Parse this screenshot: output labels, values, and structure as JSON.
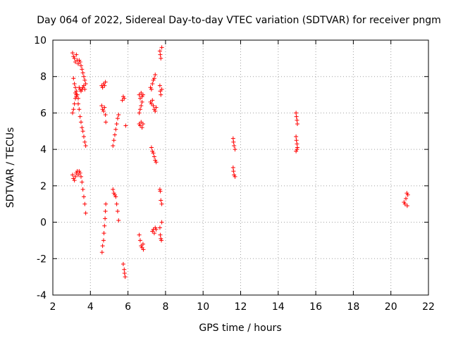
{
  "chart_data": {
    "type": "scatter",
    "title": "Day 064 of 2022, Sidereal Day-to-day VTEC variation (SDTVAR) for receiver pngm",
    "xlabel": "GPS time / hours",
    "ylabel": "SDTVAR / TECUs",
    "xlim": [
      2,
      22
    ],
    "ylim": [
      -4,
      10
    ],
    "xticks": [
      2,
      4,
      6,
      8,
      10,
      12,
      14,
      16,
      18,
      20,
      22
    ],
    "yticks": [
      -4,
      -2,
      0,
      2,
      4,
      6,
      8,
      10
    ],
    "xtick_labels": [
      "2",
      "4",
      "6",
      "8",
      "10",
      "12",
      "14",
      "16",
      "18",
      "20",
      "22"
    ],
    "ytick_labels": [
      "-4",
      "-2",
      "0",
      "2",
      "4",
      "6",
      "8",
      "10"
    ],
    "grid": true,
    "marker": "+",
    "color": "#ff0000",
    "series": [
      {
        "name": "SDTVAR",
        "points": [
          [
            3.05,
            9.3
          ],
          [
            3.1,
            9.1
          ],
          [
            3.15,
            9.0
          ],
          [
            3.2,
            8.8
          ],
          [
            3.25,
            9.2
          ],
          [
            3.3,
            8.9
          ],
          [
            3.35,
            8.7
          ],
          [
            3.4,
            8.9
          ],
          [
            3.45,
            8.8
          ],
          [
            3.5,
            8.6
          ],
          [
            3.55,
            8.4
          ],
          [
            3.6,
            8.2
          ],
          [
            3.65,
            8.0
          ],
          [
            3.7,
            7.8
          ],
          [
            3.75,
            7.6
          ],
          [
            3.1,
            7.9
          ],
          [
            3.15,
            7.6
          ],
          [
            3.2,
            7.4
          ],
          [
            3.25,
            7.2
          ],
          [
            3.3,
            7.0
          ],
          [
            3.35,
            6.8
          ],
          [
            3.4,
            7.4
          ],
          [
            3.45,
            7.3
          ],
          [
            3.5,
            7.2
          ],
          [
            3.55,
            7.3
          ],
          [
            3.6,
            7.4
          ],
          [
            3.65,
            7.5
          ],
          [
            3.7,
            7.3
          ],
          [
            3.2,
            7.1
          ],
          [
            3.25,
            6.9
          ],
          [
            3.05,
            6.0
          ],
          [
            3.1,
            6.2
          ],
          [
            3.15,
            6.5
          ],
          [
            3.2,
            6.8
          ],
          [
            3.25,
            7.0
          ],
          [
            3.35,
            6.5
          ],
          [
            3.4,
            6.2
          ],
          [
            3.45,
            5.8
          ],
          [
            3.5,
            5.5
          ],
          [
            3.55,
            5.2
          ],
          [
            3.6,
            5.0
          ],
          [
            3.65,
            4.7
          ],
          [
            3.7,
            4.4
          ],
          [
            3.75,
            4.2
          ],
          [
            3.05,
            2.6
          ],
          [
            3.1,
            2.4
          ],
          [
            3.15,
            2.3
          ],
          [
            3.2,
            2.5
          ],
          [
            3.25,
            2.7
          ],
          [
            3.3,
            2.8
          ],
          [
            3.35,
            2.6
          ],
          [
            3.4,
            2.8
          ],
          [
            3.45,
            2.7
          ],
          [
            3.5,
            2.5
          ],
          [
            3.55,
            2.2
          ],
          [
            3.6,
            1.8
          ],
          [
            3.65,
            1.4
          ],
          [
            3.7,
            1.0
          ],
          [
            3.75,
            0.5
          ],
          [
            4.62,
            -1.65
          ],
          [
            4.65,
            -1.3
          ],
          [
            4.7,
            -1.0
          ],
          [
            4.72,
            -0.6
          ],
          [
            4.75,
            -0.2
          ],
          [
            4.78,
            0.2
          ],
          [
            4.8,
            0.6
          ],
          [
            4.82,
            1.0
          ],
          [
            4.6,
            7.5
          ],
          [
            4.65,
            7.4
          ],
          [
            4.7,
            7.6
          ],
          [
            4.75,
            7.5
          ],
          [
            4.8,
            7.7
          ],
          [
            4.6,
            6.4
          ],
          [
            4.65,
            6.2
          ],
          [
            4.7,
            6.1
          ],
          [
            4.75,
            6.3
          ],
          [
            4.8,
            5.9
          ],
          [
            4.82,
            5.5
          ],
          [
            5.2,
            4.2
          ],
          [
            5.25,
            4.5
          ],
          [
            5.3,
            4.8
          ],
          [
            5.35,
            5.1
          ],
          [
            5.4,
            5.4
          ],
          [
            5.45,
            5.7
          ],
          [
            5.5,
            5.9
          ],
          [
            5.2,
            1.8
          ],
          [
            5.25,
            1.6
          ],
          [
            5.3,
            1.5
          ],
          [
            5.35,
            1.4
          ],
          [
            5.4,
            1.0
          ],
          [
            5.45,
            0.6
          ],
          [
            5.5,
            0.1
          ],
          [
            5.75,
            -2.3
          ],
          [
            5.8,
            -2.6
          ],
          [
            5.82,
            -2.8
          ],
          [
            5.85,
            -3.0
          ],
          [
            5.7,
            6.7
          ],
          [
            5.75,
            6.9
          ],
          [
            5.8,
            6.8
          ],
          [
            5.88,
            5.3
          ],
          [
            6.6,
            7.0
          ],
          [
            6.65,
            6.8
          ],
          [
            6.7,
            7.1
          ],
          [
            6.75,
            6.9
          ],
          [
            6.8,
            7.0
          ],
          [
            6.6,
            6.0
          ],
          [
            6.65,
            6.2
          ],
          [
            6.7,
            6.4
          ],
          [
            6.75,
            6.6
          ],
          [
            6.6,
            5.4
          ],
          [
            6.65,
            5.3
          ],
          [
            6.7,
            5.5
          ],
          [
            6.75,
            5.2
          ],
          [
            6.8,
            5.4
          ],
          [
            6.6,
            -0.7
          ],
          [
            6.65,
            -1.0
          ],
          [
            6.7,
            -1.3
          ],
          [
            6.75,
            -1.4
          ],
          [
            6.8,
            -1.2
          ],
          [
            6.82,
            -1.5
          ],
          [
            7.2,
            7.4
          ],
          [
            7.25,
            7.3
          ],
          [
            7.3,
            7.6
          ],
          [
            7.35,
            7.8
          ],
          [
            7.4,
            7.9
          ],
          [
            7.45,
            8.1
          ],
          [
            7.2,
            6.6
          ],
          [
            7.25,
            6.5
          ],
          [
            7.3,
            6.7
          ],
          [
            7.35,
            6.4
          ],
          [
            7.4,
            6.2
          ],
          [
            7.45,
            6.1
          ],
          [
            7.5,
            6.3
          ],
          [
            7.25,
            4.1
          ],
          [
            7.3,
            3.9
          ],
          [
            7.35,
            3.8
          ],
          [
            7.4,
            3.6
          ],
          [
            7.45,
            3.4
          ],
          [
            7.5,
            3.3
          ],
          [
            7.3,
            -0.5
          ],
          [
            7.35,
            -0.4
          ],
          [
            7.4,
            -0.6
          ],
          [
            7.45,
            -0.3
          ],
          [
            7.5,
            -0.4
          ],
          [
            7.7,
            9.4
          ],
          [
            7.72,
            9.2
          ],
          [
            7.75,
            9.0
          ],
          [
            7.8,
            9.6
          ],
          [
            7.7,
            7.5
          ],
          [
            7.72,
            7.2
          ],
          [
            7.75,
            7.0
          ],
          [
            7.8,
            7.3
          ],
          [
            7.7,
            1.8
          ],
          [
            7.72,
            1.7
          ],
          [
            7.75,
            1.2
          ],
          [
            7.8,
            1.0
          ],
          [
            7.7,
            -0.3
          ],
          [
            7.72,
            -0.7
          ],
          [
            7.75,
            -0.9
          ],
          [
            7.78,
            -1.0
          ],
          [
            7.8,
            0.0
          ],
          [
            11.6,
            4.6
          ],
          [
            11.62,
            4.4
          ],
          [
            11.65,
            4.2
          ],
          [
            11.7,
            4.0
          ],
          [
            11.6,
            3.0
          ],
          [
            11.62,
            2.8
          ],
          [
            11.65,
            2.6
          ],
          [
            11.7,
            2.5
          ],
          [
            14.95,
            6.0
          ],
          [
            14.97,
            5.8
          ],
          [
            15.0,
            5.6
          ],
          [
            15.02,
            5.4
          ],
          [
            14.95,
            4.7
          ],
          [
            14.97,
            4.5
          ],
          [
            15.0,
            4.3
          ],
          [
            15.02,
            4.1
          ],
          [
            14.95,
            3.9
          ],
          [
            15.0,
            4.0
          ],
          [
            20.7,
            1.1
          ],
          [
            20.75,
            1.0
          ],
          [
            20.8,
            1.3
          ],
          [
            20.85,
            1.6
          ],
          [
            20.87,
            0.9
          ],
          [
            20.9,
            1.5
          ]
        ]
      }
    ]
  }
}
